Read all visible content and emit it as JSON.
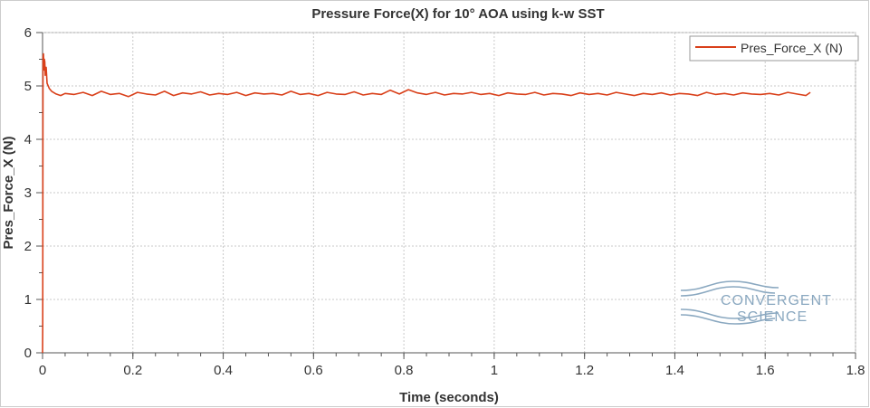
{
  "chart_data": {
    "type": "line",
    "title": "Pressure Force(X) for 10° AOA using k-w SST",
    "xlabel": "Time (seconds)",
    "ylabel": "Pres_Force_X (N)",
    "xlim": [
      0,
      1.8
    ],
    "ylim": [
      0,
      6
    ],
    "x_ticks": [
      0,
      0.2,
      0.4,
      0.6,
      0.8,
      1,
      1.2,
      1.4,
      1.6,
      1.8
    ],
    "x_tick_labels": [
      "0",
      "0.2",
      "0.4",
      "0.6",
      "0.8",
      "1",
      "1.2",
      "1.4",
      "1.6",
      "1.8"
    ],
    "y_ticks": [
      0,
      1,
      2,
      3,
      4,
      5,
      6
    ],
    "y_tick_labels": [
      "0",
      "1",
      "2",
      "3",
      "4",
      "5",
      "6"
    ],
    "grid": true,
    "legend_position": "top-right",
    "series": [
      {
        "name": "Pres_Force_X (N)",
        "color": "#d9401a",
        "x": [
          0,
          0.0005,
          0.001,
          0.002,
          0.003,
          0.004,
          0.005,
          0.006,
          0.008,
          0.01,
          0.015,
          0.02,
          0.03,
          0.04,
          0.05,
          0.07,
          0.09,
          0.11,
          0.13,
          0.15,
          0.17,
          0.19,
          0.21,
          0.23,
          0.25,
          0.27,
          0.29,
          0.31,
          0.33,
          0.35,
          0.37,
          0.39,
          0.41,
          0.43,
          0.45,
          0.47,
          0.49,
          0.51,
          0.53,
          0.55,
          0.57,
          0.59,
          0.61,
          0.63,
          0.65,
          0.67,
          0.69,
          0.71,
          0.73,
          0.75,
          0.77,
          0.79,
          0.81,
          0.83,
          0.85,
          0.87,
          0.89,
          0.91,
          0.93,
          0.95,
          0.97,
          0.99,
          1.01,
          1.03,
          1.05,
          1.07,
          1.09,
          1.11,
          1.13,
          1.15,
          1.17,
          1.19,
          1.21,
          1.23,
          1.25,
          1.27,
          1.29,
          1.31,
          1.33,
          1.35,
          1.37,
          1.39,
          1.41,
          1.43,
          1.45,
          1.47,
          1.49,
          1.51,
          1.53,
          1.55,
          1.57,
          1.59,
          1.61,
          1.63,
          1.65,
          1.67,
          1.69,
          1.7
        ],
        "y": [
          0,
          0.5,
          5.55,
          5.6,
          5.3,
          5.5,
          5.45,
          5.2,
          5.35,
          5.05,
          4.95,
          4.9,
          4.85,
          4.82,
          4.86,
          4.84,
          4.88,
          4.82,
          4.9,
          4.84,
          4.86,
          4.8,
          4.88,
          4.85,
          4.83,
          4.9,
          4.82,
          4.87,
          4.85,
          4.89,
          4.83,
          4.86,
          4.84,
          4.88,
          4.82,
          4.87,
          4.85,
          4.86,
          4.83,
          4.9,
          4.84,
          4.86,
          4.82,
          4.88,
          4.85,
          4.84,
          4.89,
          4.83,
          4.86,
          4.84,
          4.92,
          4.85,
          4.93,
          4.87,
          4.84,
          4.88,
          4.83,
          4.86,
          4.85,
          4.88,
          4.84,
          4.86,
          4.82,
          4.87,
          4.85,
          4.84,
          4.88,
          4.83,
          4.86,
          4.85,
          4.82,
          4.87,
          4.84,
          4.86,
          4.83,
          4.88,
          4.85,
          4.82,
          4.86,
          4.84,
          4.87,
          4.83,
          4.86,
          4.85,
          4.82,
          4.88,
          4.84,
          4.86,
          4.83,
          4.87,
          4.85,
          4.84,
          4.86,
          4.83,
          4.88,
          4.85,
          4.82,
          4.88
        ]
      }
    ]
  },
  "logo": {
    "line1": "CONVERGENT",
    "line2": "SCIENCE",
    "color": "#8aa8c0"
  },
  "colors": {
    "axis": "#555555",
    "grid": "#c8c8c8",
    "frame": "#aaaaaa"
  }
}
